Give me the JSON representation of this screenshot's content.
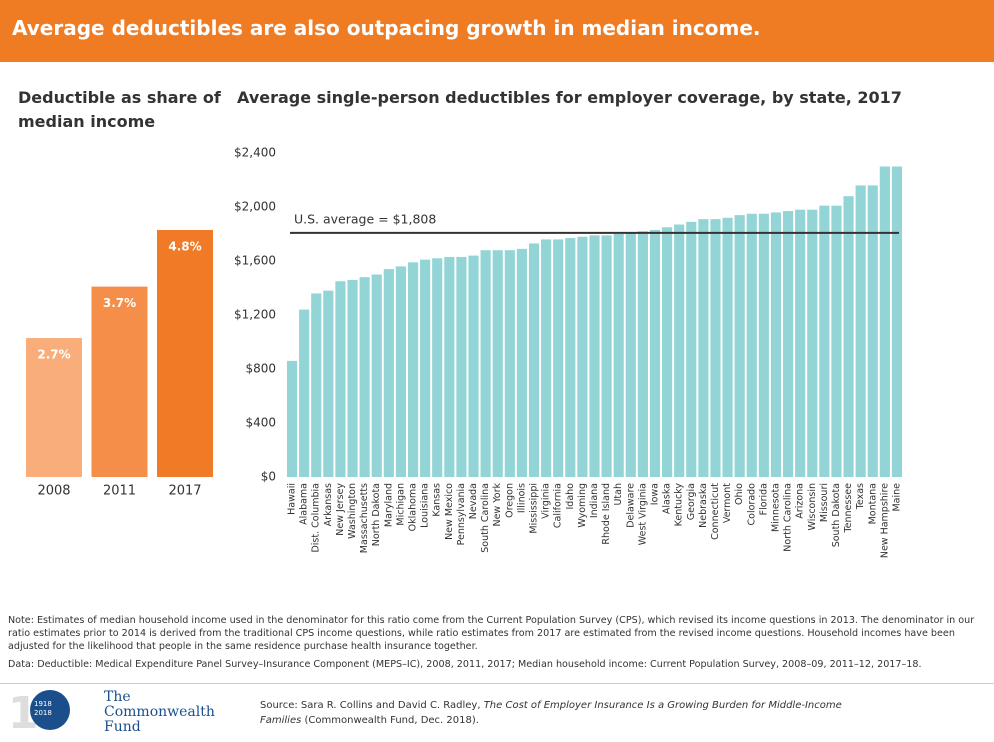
{
  "header": {
    "title": "Average deductibles are also outpacing growth in median income."
  },
  "chart_data": [
    {
      "type": "bar",
      "title": "Deductible as share of median income",
      "categories": [
        "2008",
        "2011",
        "2017"
      ],
      "values": [
        2.7,
        3.7,
        4.8
      ],
      "value_labels": [
        "2.7%",
        "3.7%",
        "4.8%"
      ],
      "colors": [
        "#f8ad7a",
        "#f58e48",
        "#f07a26"
      ]
    },
    {
      "type": "bar",
      "title": "Average single-person deductibles for employer coverage, by state, 2017",
      "categories": [
        "Hawaii",
        "Alabama",
        "Dist. Columbia",
        "Arkansas",
        "New Jersey",
        "Washington",
        "Massachusetts",
        "North Dakota",
        "Maryland",
        "Michigan",
        "Oklahoma",
        "Louisiana",
        "Kansas",
        "New Mexico",
        "Pennsylvania",
        "Nevada",
        "South Carolina",
        "New York",
        "Oregon",
        "Illinois",
        "Mississippi",
        "Virginia",
        "California",
        "Idaho",
        "Wyoming",
        "Indiana",
        "Rhode Island",
        "Utah",
        "Delaware",
        "West Virginia",
        "Iowa",
        "Alaska",
        "Kentucky",
        "Georgia",
        "Nebraska",
        "Connecticut",
        "Vermont",
        "Ohio",
        "Colorado",
        "Florida",
        "Minnesota",
        "North Carolina",
        "Arizona",
        "Wisconsin",
        "Missouri",
        "South Dakota",
        "Tennessee",
        "Texas",
        "Montana",
        "New Hampshire",
        "Maine"
      ],
      "values": [
        860,
        1240,
        1360,
        1380,
        1450,
        1460,
        1480,
        1500,
        1540,
        1560,
        1590,
        1610,
        1620,
        1630,
        1630,
        1640,
        1680,
        1680,
        1680,
        1690,
        1730,
        1760,
        1760,
        1770,
        1780,
        1790,
        1790,
        1800,
        1810,
        1820,
        1830,
        1850,
        1870,
        1890,
        1910,
        1910,
        1920,
        1940,
        1950,
        1950,
        1960,
        1970,
        1980,
        1980,
        2010,
        2010,
        2080,
        2160,
        2160,
        2300,
        2300
      ],
      "color": "#93d5d6",
      "ylim": [
        0,
        2400
      ],
      "yticks": [
        {
          "value": 0,
          "label": "$0"
        },
        {
          "value": 400,
          "label": "$400"
        },
        {
          "value": 800,
          "label": "$800"
        },
        {
          "value": 1200,
          "label": "$1,200"
        },
        {
          "value": 1600,
          "label": "$1,600"
        },
        {
          "value": 2000,
          "label": "$2,000"
        },
        {
          "value": 2400,
          "label": "$2,400"
        }
      ],
      "reference_line": {
        "value": 1808,
        "label": "U.S. average = $1,808",
        "color": "#333333"
      }
    }
  ],
  "notes": {
    "note": "Note: Estimates of median household income used in the denominator for this ratio come from the Current Population Survey (CPS), which revised its income questions in 2013. The denominator in our ratio estimates prior to 2014 is derived from the traditional CPS income questions, while ratio estimates from 2017 are estimated from the revised income questions. Household incomes have been adjusted for the likelihood that people in the same residence purchase health insurance together.",
    "data": "Data: Deductible: Medical Expenditure Panel Survey–Insurance Component (MEPS–IC), 2008, 2011, 2017; Median household income: Current Population Survey, 2008–09, 2011–12, 2017–18."
  },
  "source": {
    "prefix": "Source: Sara R. Collins and David C. Radley, ",
    "title": "The Cost of Employer Insurance Is a Growing Burden for Middle-Income Families",
    "suffix": " (Commonwealth Fund, Dec. 2018)."
  },
  "logo": {
    "name": "The Commonwealth Fund",
    "years": [
      "1918",
      "2018"
    ]
  }
}
